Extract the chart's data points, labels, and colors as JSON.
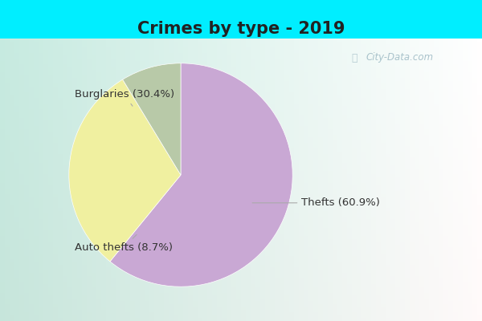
{
  "title": "Crimes by type - 2019",
  "slices": [
    {
      "label": "Thefts (60.9%)",
      "value": 60.9,
      "color": "#c9a8d4"
    },
    {
      "label": "Burglaries (30.4%)",
      "value": 30.4,
      "color": "#f0f0a0"
    },
    {
      "label": "Auto thefts (8.7%)",
      "value": 8.7,
      "color": "#b8c9a8"
    }
  ],
  "bg_outer": "#00eeff",
  "bg_inner_topleft": "#d0ede8",
  "bg_inner_center": "#e8f5f0",
  "title_fontsize": 15,
  "title_color": "#222222",
  "label_fontsize": 9.5,
  "label_color": "#333333",
  "watermark": "City-Data.com",
  "startangle": 90
}
